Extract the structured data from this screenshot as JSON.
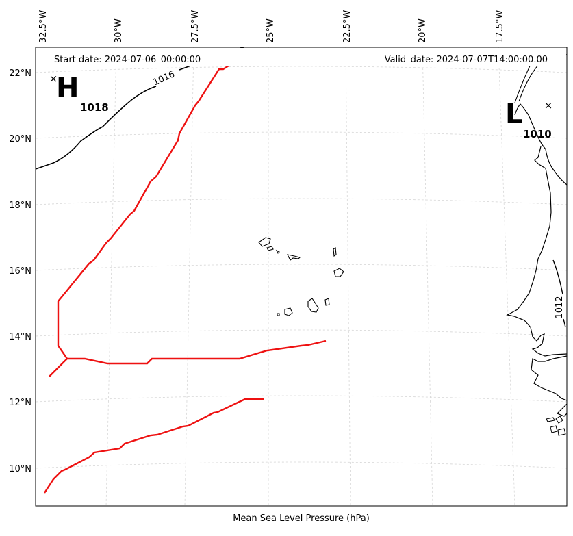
{
  "header": {
    "start_date": "Start date: 2024-07-06_00:00:00",
    "valid_date": "Valid_date: 2024-07-07T14:00:00.00"
  },
  "footer": {
    "xlabel": "Mean Sea Level Pressure (hPa)"
  },
  "longitude_labels": [
    "32.5°W",
    "30°W",
    "27.5°W",
    "25°W",
    "22.5°W",
    "20°W",
    "17.5°W"
  ],
  "latitude_labels": [
    "22°N",
    "20°N",
    "18°N",
    "16°N",
    "14°N",
    "12°N",
    "10°N"
  ],
  "pressure_centers": {
    "high": {
      "symbol": "H",
      "marker": "×",
      "value": "1018"
    },
    "low": {
      "symbol": "L",
      "marker": "×",
      "value": "1010"
    }
  },
  "contour_labels": {
    "c1016": "1016",
    "c1012": "1012"
  },
  "colors": {
    "track": "#ee1111",
    "contour": "#000000",
    "grid": "#cccccc",
    "frame": "#000000"
  },
  "chart_data": {
    "type": "map",
    "projection": "Lambert-like conic",
    "extent": {
      "lon_range": [
        "32.5°W",
        "16°W"
      ],
      "lat_range": [
        "9°N",
        "22.7°N"
      ]
    },
    "gridlines": true,
    "isobars_hPa": [
      1016,
      1012
    ],
    "highs": [
      {
        "label": "H",
        "pressure_hPa": 1018,
        "approx_location": "22°N 32°W"
      }
    ],
    "lows": [
      {
        "label": "L",
        "pressure_hPa": 1010,
        "approx_location": "21°N 17°W"
      }
    ],
    "tracks": [
      {
        "color": "red",
        "note": "northern/western track from about 22°N 26°W southward to 13°N 33°W then east to 14°N 24°W"
      },
      {
        "color": "red",
        "note": "southern track from about 9°N 32.5°W northeast to 12°N 25°W"
      }
    ],
    "land": [
      "Cape Verde islands",
      "West African coast"
    ]
  }
}
